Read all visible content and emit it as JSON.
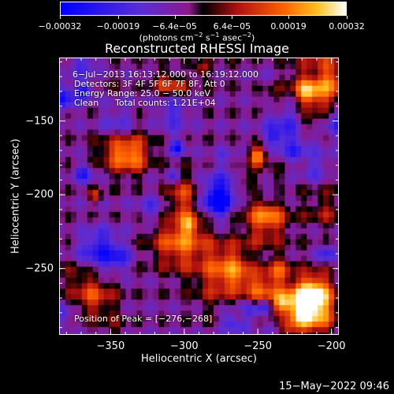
{
  "chart_data": {
    "type": "heatmap",
    "title": "Reconstructed RHESSI Image",
    "xlabel": "Heliocentric X (arcsec)",
    "ylabel": "Heliocentric Y (arcsec)",
    "xlim": [
      -385,
      -195
    ],
    "ylim": [
      -295,
      -107
    ],
    "xticks": [
      -350,
      -300,
      -250,
      -200
    ],
    "xtick_labels": [
      "−350",
      "−300",
      "−250",
      "−200"
    ],
    "yticks": [
      -150,
      -200,
      -250
    ],
    "ytick_labels": [
      "−150",
      "−200",
      "−250"
    ],
    "colorbar": {
      "ticks": [
        -0.00032,
        -0.00019,
        -6.4e-05,
        6.4e-05,
        0.00019,
        0.00032
      ],
      "tick_labels": [
        "−0.00032",
        "−0.00019",
        "−6.4e−05",
        "6.4e−05",
        "0.00019",
        "0.00032"
      ],
      "units_text": "(photons cm",
      "units_exp1": "−2",
      "units_mid1": " s",
      "units_exp2": "−1",
      "units_mid2": " asec",
      "units_exp3": "−2",
      "units_end": ")",
      "range": [
        -0.00032,
        0.00032
      ]
    },
    "annotations": {
      "time_range": "6−Jul−2013 16:13:12.000 to 16:19:12.000",
      "detectors": "Detectors: 3F 4F 5F 6F 7F 8F, Att 0",
      "energy_range": "Energy Range: 25.0 − 50.0 keV",
      "method": "Clean",
      "total_counts": "Total counts: 1.21E+04",
      "peak_position": "Position of Peak = [−276,−268]"
    },
    "peak": {
      "x": -276,
      "y": -268
    },
    "grid": false
  },
  "timestamp": "15−May−2022 09:46"
}
